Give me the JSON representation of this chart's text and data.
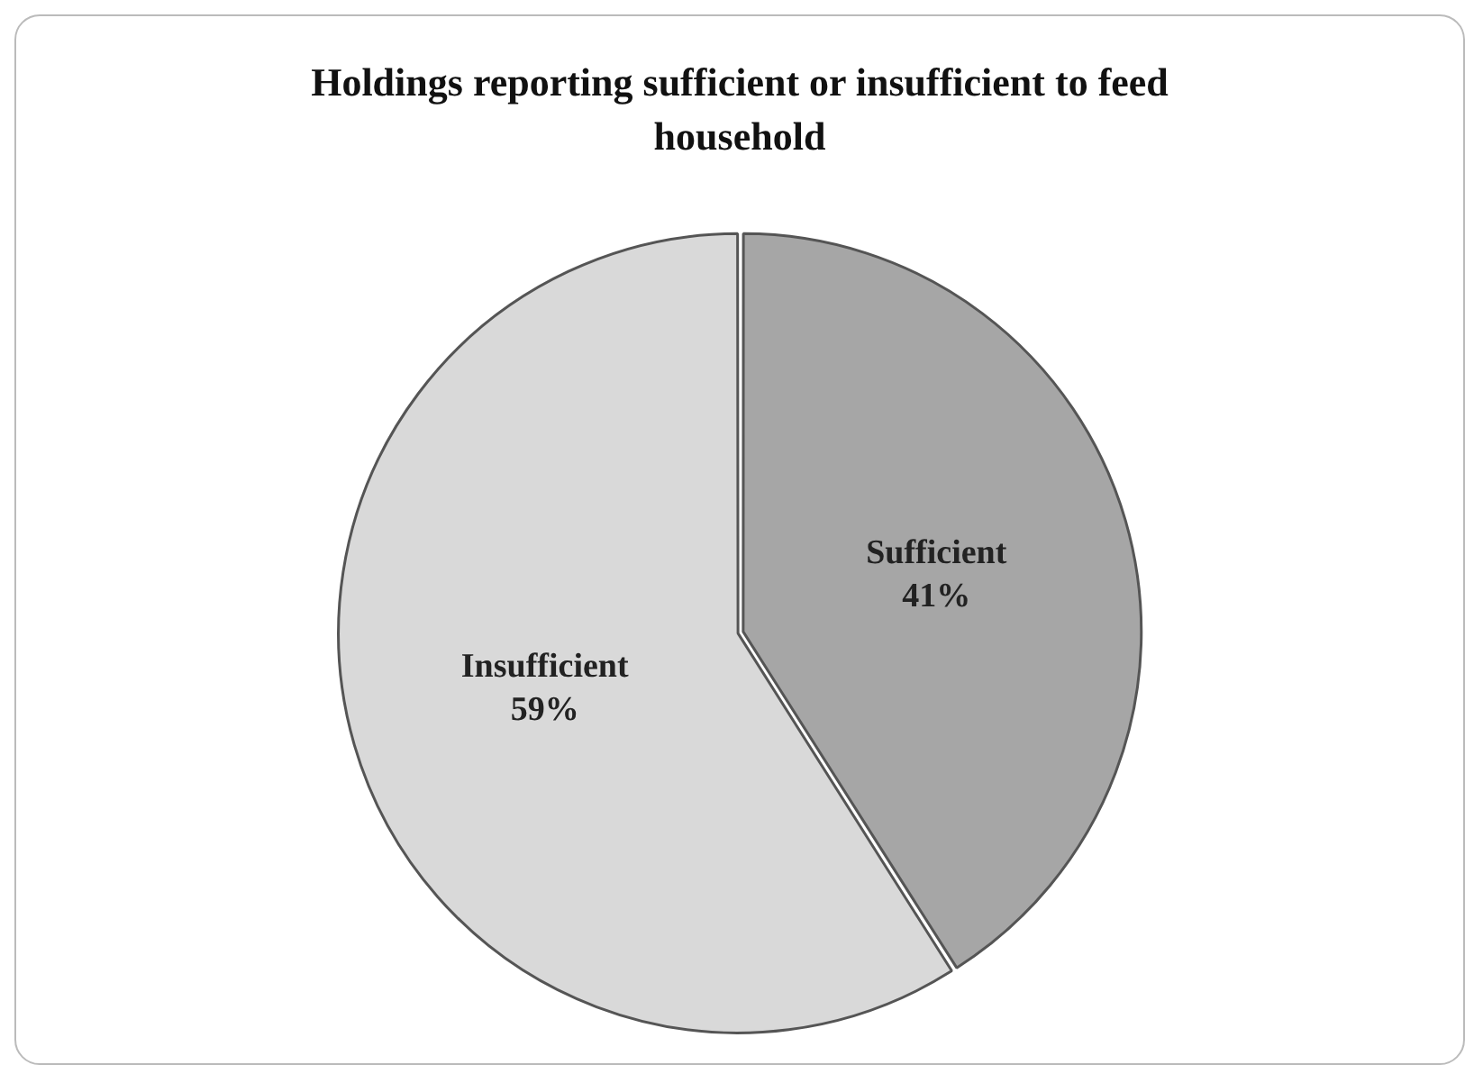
{
  "chart_data": {
    "type": "pie",
    "title": "Holdings reporting sufficient or insufficient  to feed household",
    "categories": [
      "Sufficient",
      "Insufficient"
    ],
    "values": [
      41,
      59
    ],
    "value_labels": [
      "41%",
      "59%"
    ],
    "colors": [
      "#a6a6a6",
      "#d9d9d9"
    ],
    "legend": false
  }
}
